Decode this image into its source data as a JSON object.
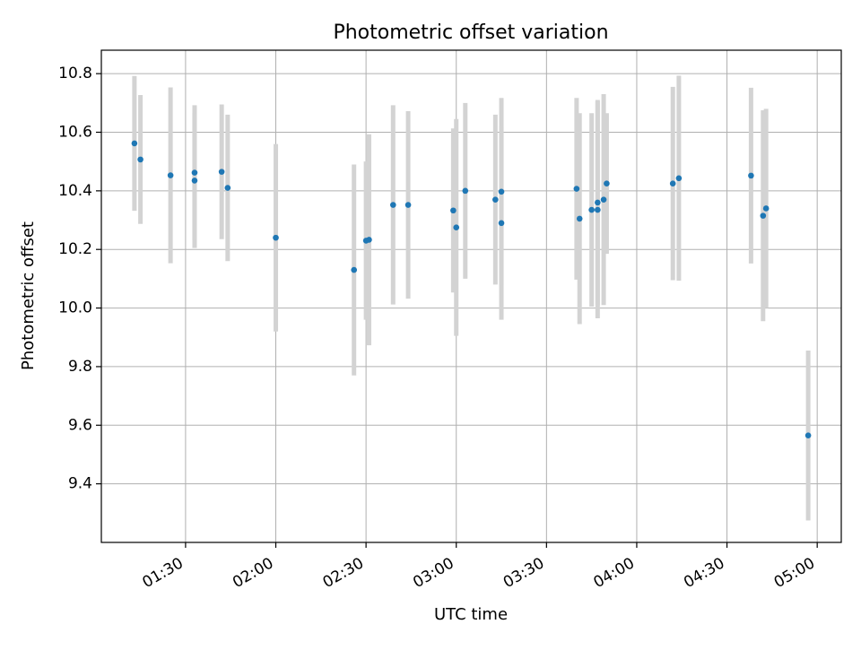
{
  "chart_data": {
    "type": "scatter",
    "title": "Photometric offset variation",
    "xlabel": "UTC time",
    "ylabel": "Photometric offset",
    "xlim": [
      "01:02",
      "05:08"
    ],
    "ylim": [
      9.2,
      10.88
    ],
    "x_ticks": [
      "01:30",
      "02:00",
      "02:30",
      "03:00",
      "03:30",
      "04:00",
      "04:30",
      "05:00"
    ],
    "y_ticks": [
      "9.4",
      "9.6",
      "9.8",
      "10.0",
      "10.2",
      "10.4",
      "10.6",
      "10.8"
    ],
    "grid": true,
    "point_color": "#1f77b4",
    "errorbar_color": "#d3d3d3",
    "points": [
      {
        "x": "01:13",
        "y": 10.562,
        "err": 0.23
      },
      {
        "x": "01:15",
        "y": 10.507,
        "err": 0.22
      },
      {
        "x": "01:25",
        "y": 10.453,
        "err": 0.3
      },
      {
        "x": "01:33",
        "y": 10.435,
        "err": 0.23
      },
      {
        "x": "01:33",
        "y": 10.462,
        "err": 0.23
      },
      {
        "x": "01:42",
        "y": 10.465,
        "err": 0.23
      },
      {
        "x": "01:44",
        "y": 10.41,
        "err": 0.25
      },
      {
        "x": "02:00",
        "y": 10.24,
        "err": 0.32
      },
      {
        "x": "02:26",
        "y": 10.13,
        "err": 0.36
      },
      {
        "x": "02:30",
        "y": 10.23,
        "err": 0.27
      },
      {
        "x": "02:31",
        "y": 10.233,
        "err": 0.36
      },
      {
        "x": "02:39",
        "y": 10.352,
        "err": 0.34
      },
      {
        "x": "02:44",
        "y": 10.352,
        "err": 0.32
      },
      {
        "x": "02:59",
        "y": 10.333,
        "err": 0.28
      },
      {
        "x": "03:00",
        "y": 10.275,
        "err": 0.37
      },
      {
        "x": "03:03",
        "y": 10.4,
        "err": 0.3
      },
      {
        "x": "03:13",
        "y": 10.37,
        "err": 0.29
      },
      {
        "x": "03:15",
        "y": 10.397,
        "err": 0.32
      },
      {
        "x": "03:15",
        "y": 10.29,
        "err": 0.33
      },
      {
        "x": "03:40",
        "y": 10.407,
        "err": 0.31
      },
      {
        "x": "03:41",
        "y": 10.305,
        "err": 0.36
      },
      {
        "x": "03:45",
        "y": 10.335,
        "err": 0.33
      },
      {
        "x": "03:47",
        "y": 10.335,
        "err": 0.37
      },
      {
        "x": "03:47",
        "y": 10.36,
        "err": 0.35
      },
      {
        "x": "03:49",
        "y": 10.37,
        "err": 0.36
      },
      {
        "x": "03:50",
        "y": 10.425,
        "err": 0.24
      },
      {
        "x": "04:12",
        "y": 10.425,
        "err": 0.33
      },
      {
        "x": "04:14",
        "y": 10.443,
        "err": 0.35
      },
      {
        "x": "04:38",
        "y": 10.452,
        "err": 0.3
      },
      {
        "x": "04:42",
        "y": 10.315,
        "err": 0.36
      },
      {
        "x": "04:43",
        "y": 10.34,
        "err": 0.34
      },
      {
        "x": "04:57",
        "y": 9.565,
        "err": 0.29
      }
    ]
  }
}
